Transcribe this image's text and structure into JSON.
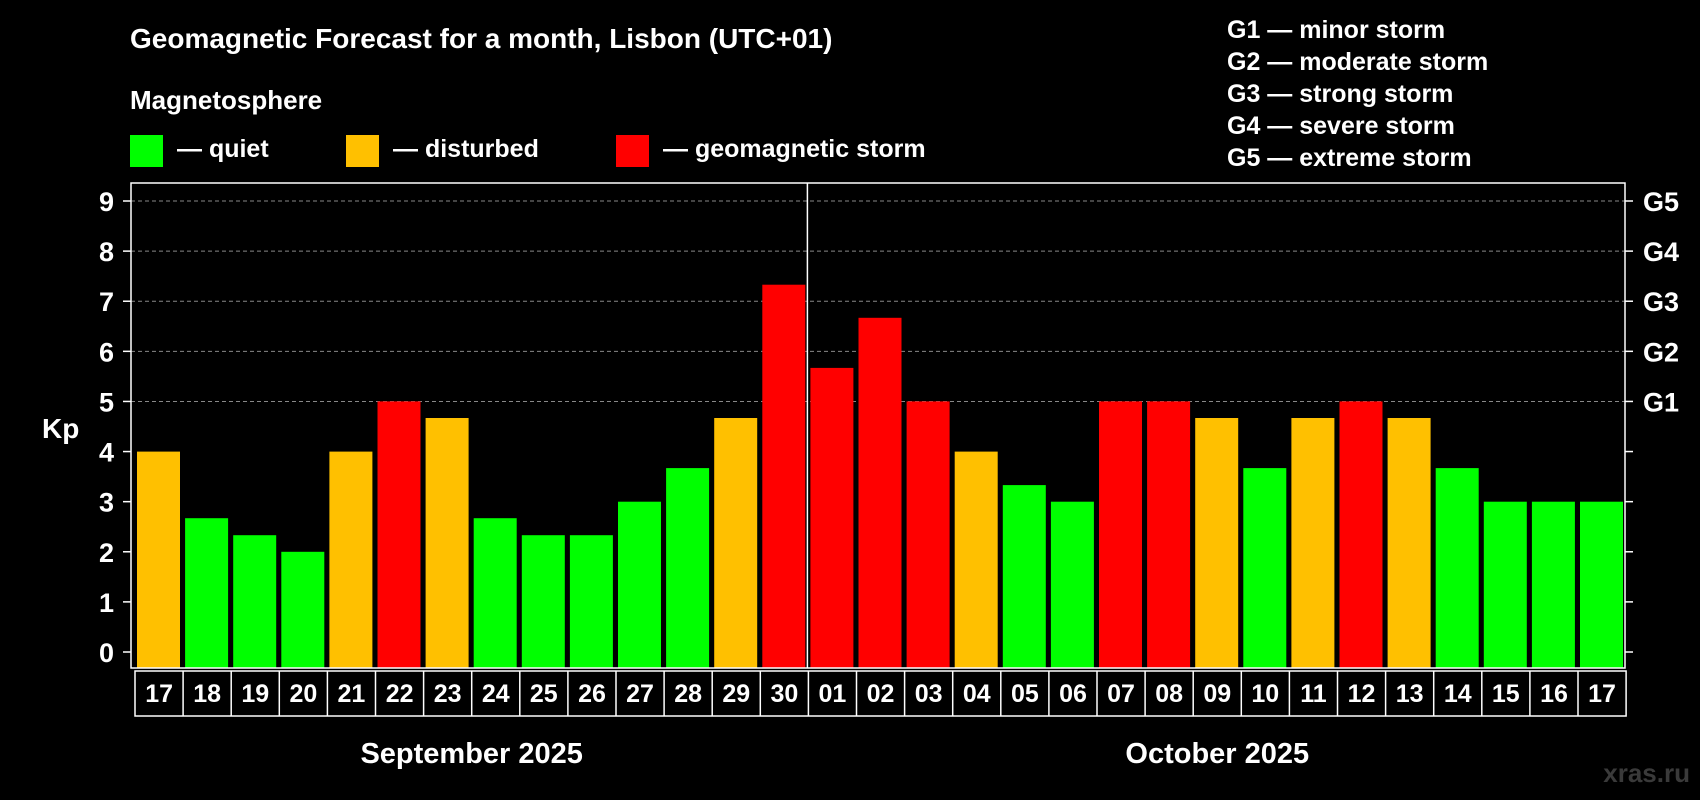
{
  "chart_data": {
    "type": "bar",
    "title": "Geomagnetic Forecast for a month, Lisbon (UTC+01)",
    "legend_title": "Magnetosphere",
    "legend": [
      {
        "label": "— quiet",
        "color": "#00ff00"
      },
      {
        "label": "— disturbed",
        "color": "#ffc000"
      },
      {
        "label": "— geomagnetic storm",
        "color": "#ff0000"
      }
    ],
    "storm_scale": [
      "G1 — minor storm",
      "G2 — moderate storm",
      "G3 — strong storm",
      "G4 — severe storm",
      "G5 — extreme storm"
    ],
    "ylabel": "Kp",
    "ylim": [
      0,
      9
    ],
    "y_ticks": [
      "0",
      "1",
      "2",
      "3",
      "4",
      "5",
      "6",
      "7",
      "8",
      "9"
    ],
    "right_ticks": [
      {
        "value": 5,
        "label": "G1"
      },
      {
        "value": 6,
        "label": "G2"
      },
      {
        "value": 7,
        "label": "G3"
      },
      {
        "value": 8,
        "label": "G4"
      },
      {
        "value": 9,
        "label": "G5"
      }
    ],
    "categories": [
      "17",
      "18",
      "19",
      "20",
      "21",
      "22",
      "23",
      "24",
      "25",
      "26",
      "27",
      "28",
      "29",
      "30",
      "01",
      "02",
      "03",
      "04",
      "05",
      "06",
      "07",
      "08",
      "09",
      "10",
      "11",
      "12",
      "13",
      "14",
      "15",
      "16",
      "17"
    ],
    "values": [
      4.0,
      2.67,
      2.33,
      2.0,
      4.0,
      5.0,
      4.67,
      2.67,
      2.33,
      2.33,
      3.0,
      3.67,
      4.67,
      7.33,
      5.67,
      6.67,
      5.0,
      4.0,
      3.33,
      3.0,
      5.0,
      5.0,
      4.67,
      3.67,
      4.67,
      5.0,
      4.67,
      3.67,
      3.0,
      3.0,
      3.0
    ],
    "levels": [
      "disturbed",
      "quiet",
      "quiet",
      "quiet",
      "disturbed",
      "storm",
      "disturbed",
      "quiet",
      "quiet",
      "quiet",
      "quiet",
      "quiet",
      "disturbed",
      "storm",
      "storm",
      "storm",
      "storm",
      "disturbed",
      "quiet",
      "quiet",
      "storm",
      "storm",
      "disturbed",
      "quiet",
      "disturbed",
      "storm",
      "disturbed",
      "quiet",
      "quiet",
      "quiet",
      "quiet"
    ],
    "level_colors": {
      "quiet": "#00ff00",
      "disturbed": "#ffc000",
      "storm": "#ff0000"
    },
    "months": [
      {
        "label": "September 2025",
        "from_index": 0,
        "to_index": 13
      },
      {
        "label": "October 2025",
        "from_index": 14,
        "to_index": 30
      }
    ],
    "grid": true
  },
  "watermark": "xras.ru"
}
